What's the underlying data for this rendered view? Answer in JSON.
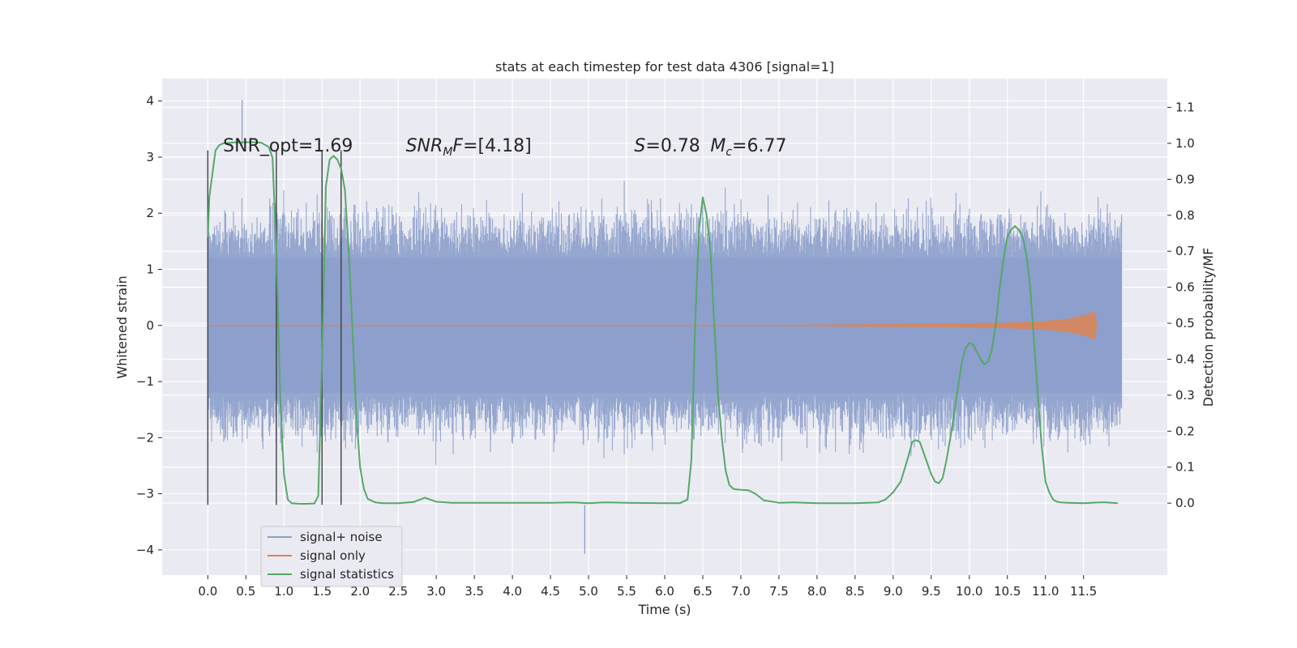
{
  "chart_data": {
    "type": "line",
    "title": "stats at each timestep for test data 4306 [signal=1]",
    "xlabel": "Time (s)",
    "ylabel_left": "Whitened strain",
    "ylabel_right": "Detection probability/MF",
    "xlim": [
      -0.6,
      12.6
    ],
    "ylim_left": [
      -4.45,
      4.4
    ],
    "ylim_right": [
      -0.2,
      1.18
    ],
    "x_ticks": [
      0.0,
      0.5,
      1.0,
      1.5,
      2.0,
      2.5,
      3.0,
      3.5,
      4.0,
      4.5,
      5.0,
      5.5,
      6.0,
      6.5,
      7.0,
      7.5,
      8.0,
      8.5,
      9.0,
      9.5,
      10.0,
      10.5,
      11.0,
      11.5
    ],
    "x_tick_labels": [
      "0.0",
      "0.5",
      "1.0",
      "1.5",
      "2.0",
      "2.5",
      "3.0",
      "3.5",
      "4.0",
      "4.5",
      "5.0",
      "5.5",
      "6.0",
      "6.5",
      "7.0",
      "7.5",
      "8.0",
      "8.5",
      "9.0",
      "9.5",
      "10.0",
      "10.5",
      "11.0",
      "11.5"
    ],
    "y_left_ticks": [
      -4,
      -3,
      -2,
      -1,
      0,
      1,
      2,
      3,
      4
    ],
    "y_left_tick_labels": [
      "−4",
      "−3",
      "−2",
      "−1",
      "0",
      "1",
      "2",
      "3",
      "4"
    ],
    "y_right_ticks": [
      0.0,
      0.1,
      0.2,
      0.3,
      0.4,
      0.5,
      0.6,
      0.7,
      0.8,
      0.9,
      1.0,
      1.1
    ],
    "y_right_tick_labels": [
      "0.0",
      "0.1",
      "0.2",
      "0.3",
      "0.4",
      "0.5",
      "0.6",
      "0.7",
      "0.8",
      "0.9",
      "1.0",
      "1.1"
    ],
    "grid": true,
    "legend_position": "lower-left",
    "colors": {
      "background": "#eaeaf2",
      "grid": "#ffffff",
      "noise": "#8c9fcb",
      "signal": "#dd8452",
      "stats": "#55a868",
      "vlines": "#404040"
    },
    "series": [
      {
        "name": "signal+ noise",
        "axis": "left",
        "x_range": [
          0.0,
          12.0
        ],
        "envelope_typical": [
          -1.8,
          1.8
        ],
        "extremes": [
          -4.07,
          4.02
        ]
      },
      {
        "name": "signal only",
        "axis": "left",
        "x": [
          0.0,
          7.5,
          8.5,
          9.5,
          10.5,
          11.0,
          11.3,
          11.5,
          11.65,
          11.68
        ],
        "amplitude": [
          0.0,
          0.01,
          0.02,
          0.03,
          0.05,
          0.08,
          0.12,
          0.18,
          0.25,
          0.0
        ]
      },
      {
        "name": "signal statistics",
        "axis": "right",
        "x": [
          0.0,
          0.02,
          0.05,
          0.1,
          0.15,
          0.2,
          0.3,
          0.4,
          0.5,
          0.6,
          0.7,
          0.8,
          0.85,
          0.9,
          0.95,
          1.0,
          1.05,
          1.1,
          1.2,
          1.3,
          1.4,
          1.45,
          1.5,
          1.55,
          1.6,
          1.65,
          1.7,
          1.75,
          1.8,
          1.85,
          1.9,
          1.95,
          2.0,
          2.05,
          2.1,
          2.2,
          2.3,
          2.5,
          2.7,
          2.85,
          3.0,
          3.2,
          4.0,
          4.5,
          4.8,
          5.0,
          5.2,
          5.5,
          6.0,
          6.2,
          6.3,
          6.35,
          6.4,
          6.45,
          6.5,
          6.55,
          6.6,
          6.65,
          6.7,
          6.75,
          6.8,
          6.85,
          6.9,
          6.95,
          7.0,
          7.1,
          7.2,
          7.3,
          7.5,
          7.7,
          8.0,
          8.5,
          8.8,
          8.9,
          9.0,
          9.1,
          9.2,
          9.25,
          9.3,
          9.35,
          9.4,
          9.45,
          9.5,
          9.55,
          9.6,
          9.65,
          9.7,
          9.75,
          9.8,
          9.85,
          9.9,
          9.95,
          10.0,
          10.05,
          10.1,
          10.15,
          10.2,
          10.25,
          10.3,
          10.35,
          10.4,
          10.45,
          10.5,
          10.55,
          10.6,
          10.65,
          10.7,
          10.75,
          10.8,
          10.85,
          10.9,
          10.95,
          11.0,
          11.05,
          11.1,
          11.15,
          11.2,
          11.3,
          11.5,
          11.7,
          11.8,
          11.95
        ],
        "y": [
          0.74,
          0.85,
          0.9,
          0.98,
          0.995,
          1.0,
          1.002,
          1.003,
          1.003,
          1.003,
          1.002,
          0.99,
          0.96,
          0.7,
          0.3,
          0.08,
          0.01,
          0.0,
          -0.002,
          -0.002,
          -0.001,
          0.02,
          0.4,
          0.88,
          0.955,
          0.965,
          0.955,
          0.93,
          0.87,
          0.7,
          0.48,
          0.25,
          0.1,
          0.04,
          0.012,
          0.002,
          0.0,
          0.0,
          0.003,
          0.015,
          0.004,
          0.001,
          0.001,
          0.001,
          0.002,
          0.0,
          0.002,
          0.001,
          0.0,
          0.0,
          0.01,
          0.12,
          0.5,
          0.76,
          0.85,
          0.8,
          0.7,
          0.5,
          0.3,
          0.18,
          0.09,
          0.05,
          0.04,
          0.038,
          0.037,
          0.036,
          0.025,
          0.008,
          0.001,
          0.002,
          0.0,
          0.0,
          0.002,
          0.01,
          0.03,
          0.06,
          0.13,
          0.17,
          0.175,
          0.17,
          0.14,
          0.11,
          0.08,
          0.06,
          0.055,
          0.07,
          0.12,
          0.18,
          0.25,
          0.32,
          0.39,
          0.43,
          0.445,
          0.44,
          0.42,
          0.4,
          0.385,
          0.395,
          0.43,
          0.5,
          0.6,
          0.68,
          0.74,
          0.76,
          0.77,
          0.76,
          0.74,
          0.69,
          0.6,
          0.45,
          0.3,
          0.16,
          0.06,
          0.03,
          0.01,
          0.004,
          0.002,
          0.001,
          0.0,
          0.002,
          0.002,
          0.0
        ]
      }
    ],
    "vlines_x": [
      0.0,
      0.9,
      1.5,
      1.75
    ],
    "annotations": [
      {
        "text": "SNR_opt=1.69",
        "x": 0.2,
        "y": 3.1,
        "style": "plain"
      },
      {
        "text": "SNR_MF=[4.18]",
        "x": 2.6,
        "y": 3.1,
        "style": "math-snr"
      },
      {
        "text": "S=0.78",
        "x": 5.6,
        "y": 3.1,
        "style": "math-s"
      },
      {
        "text": "M_c=6.77",
        "x": 6.6,
        "y": 3.1,
        "style": "math-mc"
      }
    ]
  }
}
